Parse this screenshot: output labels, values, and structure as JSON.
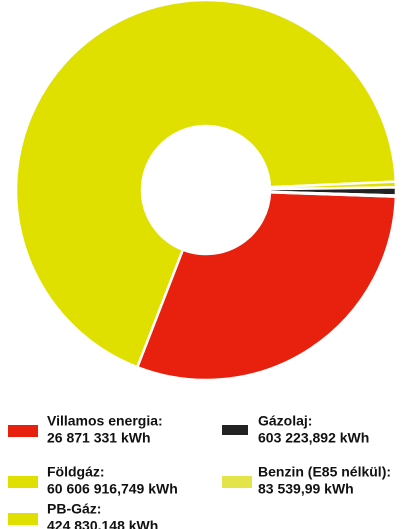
{
  "chart_data": {
    "type": "pie",
    "hole": true,
    "categories": [
      "Villamos energia:",
      "Földgáz:",
      "PB-Gáz:",
      "Gázolaj:",
      "Benzin (E85 nélkül):"
    ],
    "values": [
      26871331,
      60606916.749,
      424830.148,
      603223.892,
      83539.99
    ],
    "value_labels": [
      "26 871 331 kWh",
      "60 606 916,749 kWh",
      "424 830,148 kWh",
      "603 223,892 kWh",
      "83 539,99 kWh"
    ],
    "colors": [
      "#e8210f",
      "#dfe000",
      "#e0e000",
      "#222222",
      "#e3e34a"
    ]
  }
}
